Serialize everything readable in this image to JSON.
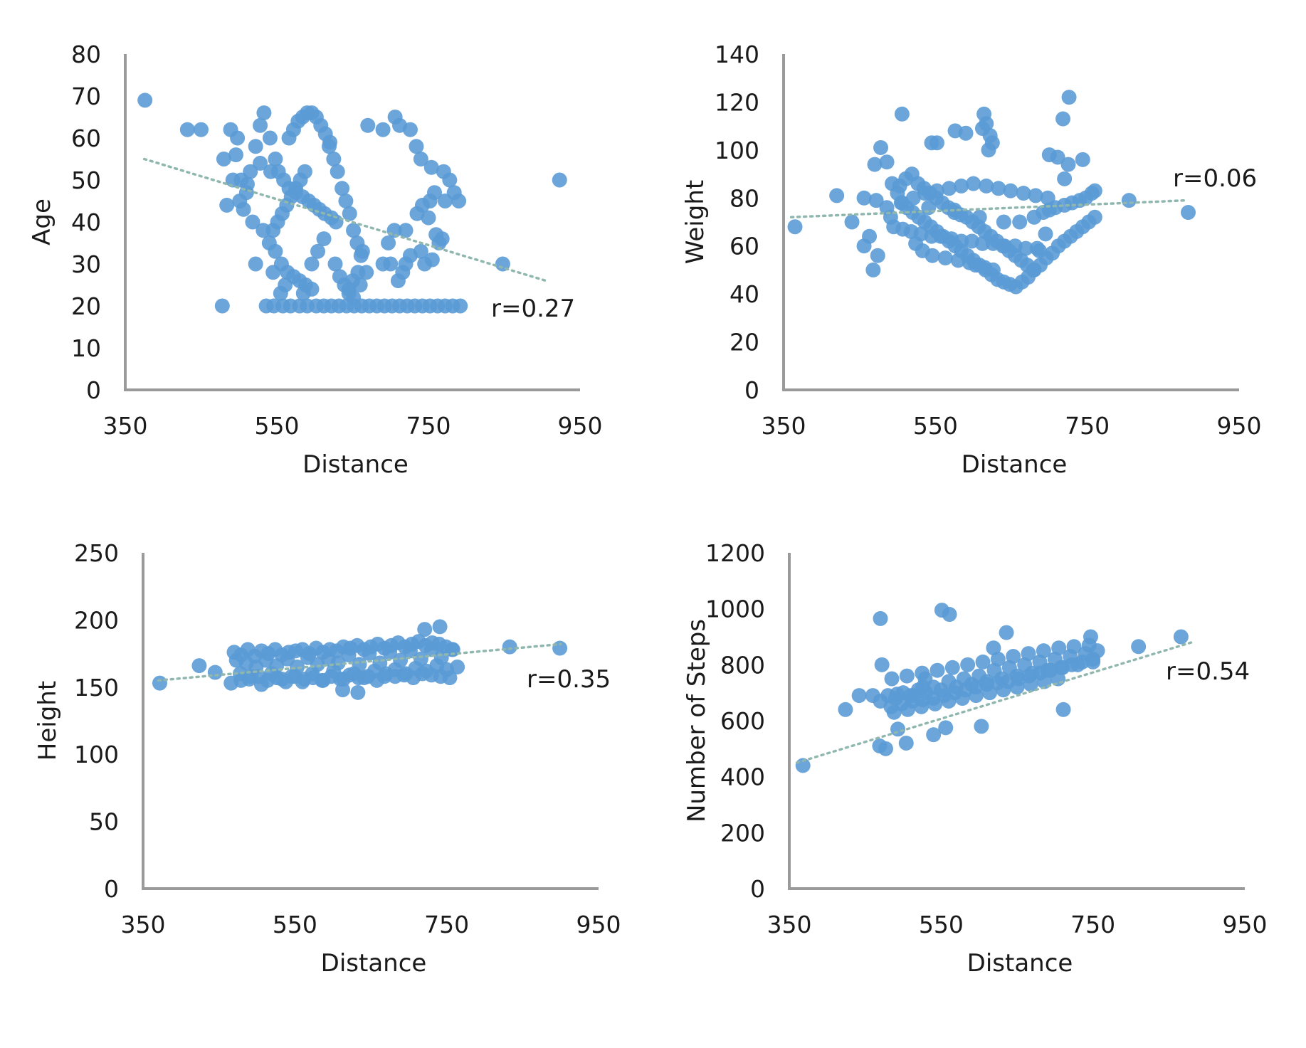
{
  "chart_data": [
    {
      "type": "scatter",
      "xlabel": "Distance",
      "ylabel": "Age",
      "xlim": [
        350,
        950
      ],
      "ylim": [
        0,
        80
      ],
      "xticks": [
        "350",
        "550",
        "750",
        "950"
      ],
      "yticks": [
        "0",
        "10",
        "20",
        "30",
        "40",
        "50",
        "60",
        "70",
        "80"
      ],
      "annotation": "r=0.27",
      "grid": false,
      "marker_color": "#5b9bd5",
      "trendline": {
        "from": [
          375,
          55
        ],
        "to": [
          905,
          26
        ]
      },
      "x": [
        376,
        432,
        450,
        489,
        480,
        498,
        496,
        492,
        501,
        511,
        515,
        506,
        522,
        528,
        533,
        541,
        548,
        552,
        559,
        566,
        575,
        584,
        592,
        599,
        606,
        613,
        622,
        628,
        536,
        546,
        558,
        568,
        580,
        590,
        602,
        612,
        622,
        632,
        642,
        652,
        662,
        672,
        682,
        692,
        702,
        712,
        722,
        732,
        742,
        752,
        762,
        772,
        782,
        792,
        619,
        625,
        630,
        636,
        641,
        646,
        651,
        656,
        661,
        627,
        633,
        639,
        645,
        651,
        657,
        663,
        566,
        572,
        578,
        584,
        590,
        596,
        602,
        608,
        614,
        620,
        540,
        548,
        556,
        564,
        572,
        580,
        588,
        596,
        604,
        612,
        545,
        551,
        557,
        563,
        569,
        575,
        581,
        587,
        670,
        690,
        706,
        712,
        726,
        734,
        740,
        754,
        770,
        778,
        784,
        790,
        750,
        760,
        764,
        478,
        510,
        518,
        532,
        484,
        503,
        528,
        542,
        522,
        545,
        561,
        555,
        585,
        596,
        645,
        650,
        660,
        668,
        690,
        697,
        705,
        720,
        735,
        742,
        752,
        758,
        772,
        710,
        716,
        700,
        720,
        726,
        740,
        745,
        755,
        768,
        848,
        923
      ],
      "y": [
        69,
        62,
        62,
        62,
        55,
        60,
        56,
        50,
        45,
        49,
        52,
        43,
        58,
        63,
        66,
        60,
        55,
        52,
        50,
        48,
        47,
        46,
        45,
        44,
        43,
        42,
        41,
        40,
        20,
        20,
        20,
        20,
        20,
        20,
        20,
        20,
        20,
        20,
        20,
        20,
        20,
        20,
        20,
        20,
        20,
        20,
        20,
        20,
        20,
        20,
        20,
        20,
        20,
        20,
        58,
        55,
        52,
        48,
        45,
        42,
        38,
        35,
        32,
        30,
        27,
        25,
        23,
        22,
        28,
        33,
        60,
        62,
        64,
        65,
        66,
        66,
        65,
        63,
        61,
        59,
        35,
        33,
        30,
        28,
        27,
        26,
        25,
        30,
        33,
        36,
        38,
        40,
        42,
        44,
        46,
        48,
        50,
        52,
        63,
        62,
        65,
        63,
        62,
        58,
        55,
        53,
        52,
        50,
        47,
        45,
        41,
        37,
        35,
        20,
        47,
        40,
        38,
        44,
        50,
        54,
        52,
        30,
        28,
        25,
        23,
        23,
        24,
        24,
        26,
        25,
        28,
        30,
        35,
        38,
        38,
        42,
        44,
        45,
        47,
        45,
        26,
        28,
        30,
        30,
        32,
        33,
        30,
        31,
        36,
        30,
        50
      ]
    },
    {
      "type": "scatter",
      "xlabel": "Distance",
      "ylabel": "Weight",
      "xlim": [
        350,
        950
      ],
      "ylim": [
        0,
        140
      ],
      "xticks": [
        "350",
        "550",
        "750",
        "950"
      ],
      "yticks": [
        "0",
        "20",
        "40",
        "60",
        "80",
        "100",
        "120",
        "140"
      ],
      "annotation": "r=0.06",
      "grid": false,
      "marker_color": "#5b9bd5",
      "trendline": {
        "from": [
          360,
          72
        ],
        "to": [
          880,
          79
        ]
      },
      "x": [
        365,
        420,
        440,
        456,
        468,
        474,
        478,
        470,
        486,
        493,
        500,
        506,
        512,
        520,
        528,
        536,
        544,
        552,
        560,
        568,
        576,
        584,
        592,
        600,
        608,
        616,
        624,
        632,
        640,
        648,
        656,
        664,
        672,
        680,
        688,
        696,
        704,
        712,
        720,
        728,
        736,
        744,
        752,
        760,
        503,
        511,
        519,
        527,
        535,
        543,
        551,
        559,
        567,
        575,
        583,
        591,
        599,
        607,
        615,
        623,
        631,
        639,
        647,
        655,
        663,
        671,
        679,
        687,
        695,
        495,
        507,
        518,
        531,
        545,
        557,
        571,
        584,
        598,
        612,
        626,
        641,
        655,
        669,
        684,
        521,
        536,
        552,
        568,
        584,
        600,
        617,
        633,
        649,
        666,
        682,
        698,
        524,
        533,
        546,
        563,
        580,
        595,
        603,
        615,
        626,
        505,
        541,
        575,
        608,
        640,
        661,
        680,
        692,
        700,
        708,
        720,
        730,
        740,
        748,
        756,
        760,
        463,
        456,
        472,
        486,
        491,
        506,
        552,
        545,
        576,
        590,
        614,
        612,
        617,
        622,
        625,
        620,
        700,
        711,
        720,
        718,
        726,
        744,
        725,
        805,
        883
      ],
      "y": [
        68,
        81,
        70,
        60,
        50,
        56,
        101,
        94,
        95,
        86,
        82,
        78,
        76,
        74,
        72,
        70,
        68,
        66,
        64,
        62,
        60,
        58,
        56,
        54,
        52,
        50,
        48,
        46,
        45,
        44,
        43,
        45,
        47,
        50,
        52,
        55,
        57,
        60,
        62,
        64,
        66,
        68,
        70,
        72,
        85,
        88,
        90,
        86,
        84,
        82,
        80,
        78,
        76,
        75,
        73,
        72,
        70,
        68,
        66,
        64,
        62,
        60,
        58,
        56,
        54,
        52,
        50,
        58,
        65,
        68,
        67,
        66,
        65,
        64,
        64,
        63,
        62,
        62,
        61,
        61,
        60,
        60,
        59,
        59,
        80,
        82,
        83,
        84,
        85,
        86,
        85,
        84,
        83,
        82,
        81,
        80,
        61,
        58,
        56,
        55,
        54,
        53,
        52,
        51,
        50,
        78,
        76,
        74,
        72,
        70,
        70,
        72,
        74,
        75,
        76,
        77,
        78,
        79,
        80,
        82,
        83,
        64,
        80,
        79,
        76,
        72,
        115,
        103,
        103,
        108,
        107,
        115,
        109,
        111,
        106,
        103,
        100,
        98,
        97,
        88,
        113,
        122,
        96,
        94,
        79,
        74
      ]
    },
    {
      "type": "scatter",
      "xlabel": "Distance",
      "ylabel": "Height",
      "xlim": [
        350,
        950
      ],
      "ylim": [
        0,
        250
      ],
      "xticks": [
        "350",
        "550",
        "750",
        "950"
      ],
      "yticks": [
        "0",
        "50",
        "100",
        "150",
        "200",
        "250"
      ],
      "annotation": "r=0.35",
      "grid": false,
      "marker_color": "#5b9bd5",
      "trendline": {
        "from": [
          370,
          155
        ],
        "to": [
          900,
          182
        ]
      },
      "x": [
        372,
        424,
        445,
        466,
        473,
        479,
        486,
        492,
        499,
        506,
        512,
        519,
        526,
        533,
        540,
        546,
        553,
        560,
        567,
        573,
        580,
        587,
        594,
        601,
        607,
        614,
        621,
        628,
        635,
        641,
        648,
        655,
        662,
        668,
        675,
        682,
        689,
        696,
        702,
        709,
        716,
        723,
        730,
        737,
        743,
        750,
        757,
        764,
        470,
        479,
        488,
        497,
        506,
        515,
        524,
        533,
        542,
        551,
        560,
        569,
        578,
        587,
        596,
        605,
        614,
        623,
        632,
        641,
        650,
        659,
        668,
        677,
        686,
        695,
        704,
        713,
        722,
        731,
        740,
        749,
        758,
        478,
        490,
        502,
        514,
        526,
        538,
        550,
        562,
        574,
        586,
        598,
        610,
        622,
        634,
        646,
        658,
        670,
        682,
        694,
        706,
        718,
        730,
        742,
        754,
        633,
        613,
        721,
        741,
        833,
        899
      ],
      "y": [
        153,
        166,
        161,
        153,
        170,
        155,
        168,
        158,
        165,
        152,
        170,
        160,
        166,
        156,
        171,
        158,
        165,
        154,
        172,
        160,
        167,
        155,
        171,
        162,
        168,
        156,
        174,
        160,
        167,
        157,
        175,
        162,
        168,
        158,
        176,
        163,
        170,
        160,
        177,
        164,
        171,
        162,
        178,
        166,
        172,
        163,
        178,
        165,
        176,
        174,
        178,
        173,
        177,
        175,
        178,
        174,
        176,
        177,
        178,
        175,
        179,
        176,
        178,
        177,
        180,
        179,
        181,
        178,
        180,
        182,
        179,
        181,
        183,
        180,
        182,
        184,
        181,
        183,
        182,
        180,
        178,
        160,
        156,
        158,
        155,
        157,
        154,
        158,
        156,
        157,
        155,
        158,
        156,
        159,
        157,
        158,
        155,
        160,
        158,
        159,
        157,
        160,
        159,
        158,
        157,
        146,
        148,
        193,
        195,
        180,
        179
      ]
    },
    {
      "type": "scatter",
      "xlabel": "Distance",
      "ylabel": "Number of Steps",
      "xlim": [
        350,
        950
      ],
      "ylim": [
        0,
        1200
      ],
      "xticks": [
        "350",
        "550",
        "750",
        "950"
      ],
      "yticks": [
        "0",
        "200",
        "400",
        "600",
        "800",
        "1000",
        "1200"
      ],
      "annotation": "r=0.54",
      "grid": false,
      "marker_color": "#5b9bd5",
      "trendline": {
        "from": [
          360,
          450
        ],
        "to": [
          880,
          880
        ]
      },
      "x": [
        368,
        424,
        442,
        472,
        470,
        492,
        514,
        526,
        529,
        493,
        469,
        504,
        477,
        460,
        480,
        500,
        520,
        540,
        560,
        580,
        600,
        620,
        640,
        660,
        680,
        700,
        720,
        740,
        756,
        485,
        505,
        525,
        545,
        565,
        585,
        605,
        625,
        645,
        665,
        685,
        705,
        725,
        745,
        484,
        498,
        512,
        526,
        540,
        554,
        568,
        582,
        596,
        610,
        624,
        638,
        652,
        666,
        680,
        694,
        708,
        722,
        736,
        750,
        470,
        490,
        510,
        530,
        550,
        570,
        590,
        610,
        630,
        650,
        670,
        690,
        710,
        730,
        750,
        488,
        506,
        524,
        542,
        560,
        578,
        596,
        614,
        632,
        650,
        668,
        686,
        704,
        540,
        556,
        551,
        561,
        603,
        636,
        619,
        711,
        747,
        810,
        866
      ],
      "y": [
        440,
        640,
        690,
        800,
        965,
        695,
        690,
        720,
        750,
        570,
        510,
        520,
        500,
        690,
        690,
        700,
        710,
        720,
        740,
        750,
        760,
        780,
        790,
        800,
        810,
        820,
        830,
        840,
        850,
        750,
        760,
        770,
        780,
        790,
        800,
        810,
        820,
        830,
        840,
        850,
        860,
        865,
        870,
        650,
        660,
        670,
        675,
        680,
        690,
        700,
        710,
        720,
        730,
        735,
        740,
        750,
        760,
        770,
        780,
        790,
        800,
        810,
        820,
        670,
        680,
        690,
        700,
        710,
        720,
        730,
        740,
        750,
        760,
        770,
        780,
        790,
        800,
        810,
        630,
        640,
        650,
        660,
        670,
        680,
        690,
        700,
        710,
        720,
        730,
        740,
        750,
        550,
        575,
        995,
        980,
        580,
        915,
        860,
        640,
        900,
        865,
        900
      ]
    }
  ]
}
